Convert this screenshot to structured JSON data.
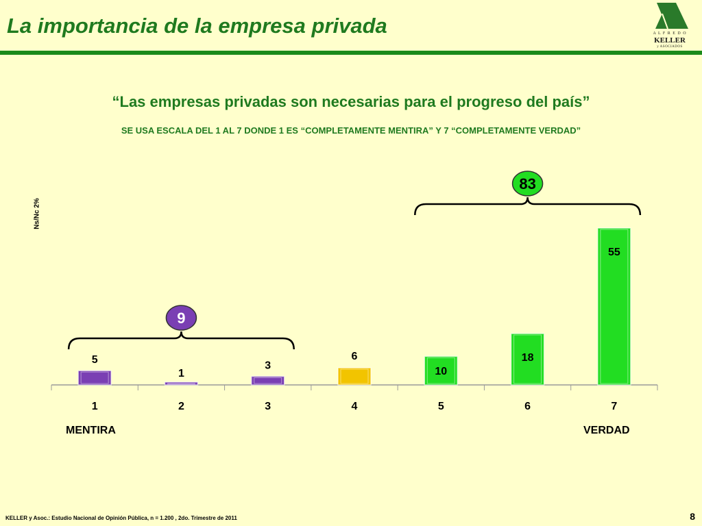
{
  "slide": {
    "title": "La importancia de la empresa privada",
    "quote": "“Las empresas privadas son necesarias para el progreso del país”",
    "subtitle": "SE USA ESCALA DEL 1 AL 7 DONDE 1 ES “COMPLETAMENTE MENTIRA” Y 7 “COMPLETAMENTE VERDAD”",
    "nsnc": "Ns/Nc  2%",
    "left_end_label": "MENTIRA",
    "right_end_label": "VERDAD",
    "footer": "KELLER y Asoc.: Estudio Nacional de Opinión Pública, n = 1.200 , 2do. Trimestre de 2011",
    "page_number": "8"
  },
  "logo": {
    "top_text": "A L F R E D O",
    "name": "KELLER",
    "sub_text": "y ASOCIADOS",
    "color": "#2a7a2a"
  },
  "chart_data": {
    "type": "bar",
    "categories": [
      "1",
      "2",
      "3",
      "4",
      "5",
      "6",
      "7"
    ],
    "values": [
      5,
      1,
      3,
      6,
      10,
      18,
      55
    ],
    "ylim": [
      0,
      55
    ],
    "bar_colors": [
      "#7a3fb3",
      "#7a3fb3",
      "#7a3fb3",
      "#f2c400",
      "#22dd22",
      "#22dd22",
      "#22dd22"
    ],
    "groups": [
      {
        "categories": [
          "1",
          "2",
          "3"
        ],
        "total": "9",
        "badge_color": "#7a3fb3",
        "text_color": "#ffffff"
      },
      {
        "categories": [
          "5",
          "6",
          "7"
        ],
        "total": "83",
        "badge_color": "#22dd22",
        "text_color": "#000000"
      }
    ]
  }
}
